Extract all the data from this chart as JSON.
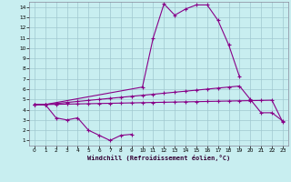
{
  "bg_color": "#c8eef0",
  "grid_color": "#a0c8d0",
  "line_color": "#880088",
  "xlabel": "Windchill (Refroidissement éolien,°C)",
  "xlim": [
    -0.5,
    23.5
  ],
  "ylim": [
    0.5,
    14.5
  ],
  "xticks": [
    0,
    1,
    2,
    3,
    4,
    5,
    6,
    7,
    8,
    9,
    10,
    11,
    12,
    13,
    14,
    15,
    16,
    17,
    18,
    19,
    20,
    21,
    22,
    23
  ],
  "yticks": [
    1,
    2,
    3,
    4,
    5,
    6,
    7,
    8,
    9,
    10,
    11,
    12,
    13,
    14
  ],
  "line1_x": [
    0,
    1,
    2,
    3,
    4,
    5,
    6,
    7,
    8,
    9
  ],
  "line1_y": [
    4.5,
    4.5,
    3.2,
    3.0,
    3.2,
    2.0,
    1.5,
    1.0,
    1.5,
    1.6
  ],
  "line2_x": [
    0,
    1,
    10,
    11,
    12,
    13,
    14,
    15,
    16,
    17,
    18,
    19
  ],
  "line2_y": [
    4.5,
    4.5,
    6.2,
    11.0,
    14.3,
    13.2,
    13.8,
    14.2,
    14.2,
    12.7,
    10.3,
    7.2
  ],
  "line3_x": [
    0,
    1,
    2,
    3,
    4,
    5,
    6,
    7,
    8,
    9,
    10,
    11,
    12,
    13,
    14,
    15,
    16,
    17,
    18,
    19,
    20,
    21,
    22,
    23
  ],
  "line3_y": [
    4.5,
    4.5,
    4.6,
    4.7,
    4.8,
    4.9,
    5.0,
    5.1,
    5.2,
    5.3,
    5.4,
    5.5,
    5.6,
    5.7,
    5.8,
    5.9,
    6.0,
    6.1,
    6.2,
    6.3,
    5.0,
    3.7,
    3.7,
    2.9
  ],
  "line4_x": [
    0,
    1,
    2,
    3,
    4,
    5,
    6,
    7,
    8,
    9,
    10,
    11,
    12,
    13,
    14,
    15,
    16,
    17,
    18,
    19,
    20,
    21,
    22,
    23
  ],
  "line4_y": [
    4.5,
    4.5,
    4.52,
    4.54,
    4.56,
    4.58,
    4.6,
    4.62,
    4.64,
    4.66,
    4.68,
    4.7,
    4.72,
    4.74,
    4.76,
    4.78,
    4.8,
    4.82,
    4.84,
    4.86,
    4.88,
    4.9,
    4.92,
    2.8
  ]
}
